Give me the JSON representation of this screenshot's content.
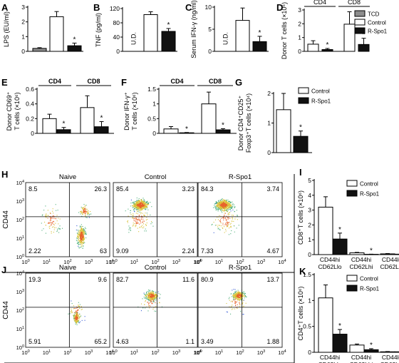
{
  "chart_data": [
    {
      "panel": "A",
      "type": "bar",
      "ylabel": "LPS (EU/ml)",
      "ylim": [
        0,
        3
      ],
      "yticks": [
        0,
        1,
        2,
        3
      ],
      "bars": [
        {
          "series": "TCD",
          "value": 0.2,
          "err": 0.05,
          "star": false
        },
        {
          "series": "Control",
          "value": 2.35,
          "err": 0.35,
          "star": false
        },
        {
          "series": "R-Spo1",
          "value": 0.38,
          "err": 0.18,
          "star": true
        }
      ]
    },
    {
      "panel": "B",
      "type": "bar",
      "ylabel": "TNF (pg/ml)",
      "ylim": [
        0,
        120
      ],
      "yticks": [
        0,
        40,
        80,
        120
      ],
      "ud_label": "U.D.",
      "bars": [
        {
          "series": "TCD",
          "value": null,
          "err": null,
          "star": false
        },
        {
          "series": "Control",
          "value": 103,
          "err": 8,
          "star": false
        },
        {
          "series": "R-Spo1",
          "value": 56,
          "err": 8,
          "star": true
        }
      ]
    },
    {
      "panel": "C",
      "type": "bar",
      "ylabel": "Serum IFN-γ (ng/ml)",
      "ylim": [
        0,
        10
      ],
      "yticks": [
        0,
        5,
        10
      ],
      "ud_label": "U.D.",
      "bars": [
        {
          "series": "TCD",
          "value": null,
          "err": null,
          "star": false
        },
        {
          "series": "Control",
          "value": 7.0,
          "err": 2.8,
          "star": false
        },
        {
          "series": "R-Spo1",
          "value": 2.2,
          "err": 1.2,
          "star": true
        }
      ]
    },
    {
      "panel": "D",
      "type": "bar",
      "ylabel": "Donor T cells (×10⁶)",
      "ylim": [
        0,
        3
      ],
      "yticks": [
        0,
        1,
        2,
        3
      ],
      "groups": [
        "CD4",
        "CD8"
      ],
      "legend": [
        "TCD",
        "Control",
        "R-Spo1"
      ],
      "bars": [
        {
          "group": "CD4",
          "series": "Control",
          "value": 0.52,
          "err": 0.25,
          "star": false
        },
        {
          "group": "CD4",
          "series": "R-Spo1",
          "value": 0.13,
          "err": 0.08,
          "star": true
        },
        {
          "group": "CD8",
          "series": "Control",
          "value": 1.97,
          "err": 0.9,
          "star": false
        },
        {
          "group": "CD8",
          "series": "R-Spo1",
          "value": 0.5,
          "err": 0.45,
          "star": true
        }
      ]
    },
    {
      "panel": "E",
      "type": "bar",
      "ylabel_lines": [
        "Donor CD69⁺",
        "T cells (×10⁶)"
      ],
      "ylim": [
        0,
        0.6
      ],
      "yticks": [
        0,
        0.2,
        0.4,
        0.6
      ],
      "groups": [
        "CD4",
        "CD8"
      ],
      "bars": [
        {
          "group": "CD4",
          "series": "Control",
          "value": 0.2,
          "err": 0.06,
          "star": false
        },
        {
          "group": "CD4",
          "series": "R-Spo1",
          "value": 0.05,
          "err": 0.03,
          "star": true
        },
        {
          "group": "CD8",
          "series": "Control",
          "value": 0.35,
          "err": 0.16,
          "star": false
        },
        {
          "group": "CD8",
          "series": "R-Spo1",
          "value": 0.09,
          "err": 0.07,
          "star": true
        }
      ]
    },
    {
      "panel": "F",
      "type": "bar",
      "ylabel_lines": [
        "Donor IFN-γ⁺",
        "T cells (×10⁶)"
      ],
      "ylim": [
        0,
        1.5
      ],
      "yticks": [
        0,
        0.5,
        1,
        1.5
      ],
      "groups": [
        "CD4",
        "CD8"
      ],
      "bars": [
        {
          "group": "CD4",
          "series": "Control",
          "value": 0.15,
          "err": 0.08,
          "star": false
        },
        {
          "group": "CD4",
          "series": "R-Spo1",
          "value": 0.02,
          "err": 0.01,
          "star": true
        },
        {
          "group": "CD8",
          "series": "Control",
          "value": 1.0,
          "err": 0.4,
          "star": false
        },
        {
          "group": "CD8",
          "series": "R-Spo1",
          "value": 0.12,
          "err": 0.04,
          "star": true
        }
      ]
    },
    {
      "panel": "G",
      "type": "bar",
      "ylabel_lines": [
        "Donor CD4⁺CD25⁺",
        "Foxp3⁺T cells (×10⁴)"
      ],
      "ylim": [
        0,
        2
      ],
      "yticks": [
        0,
        1,
        2
      ],
      "legend": [
        "Control",
        "R-Spo1"
      ],
      "bars": [
        {
          "series": "Control",
          "value": 1.45,
          "err": 0.55,
          "star": false
        },
        {
          "series": "R-Spo1",
          "value": 0.55,
          "err": 0.18,
          "star": true
        }
      ]
    },
    {
      "panel": "H",
      "type": "scatter",
      "xlabel": "CD62L",
      "ylabel": "CD44",
      "plots": [
        {
          "title": "Naive",
          "quadrants": {
            "ul": "8.5",
            "ur": "26.3",
            "ll": "2.22",
            "lr": "63"
          }
        },
        {
          "title": "Control",
          "quadrants": {
            "ul": "85.4",
            "ur": "3.23",
            "ll": "9.09",
            "lr": "2.24"
          }
        },
        {
          "title": "R-Spo1",
          "quadrants": {
            "ul": "84.3",
            "ur": "3.74",
            "ll": "7.33",
            "lr": "4.67"
          }
        }
      ]
    },
    {
      "panel": "I",
      "type": "bar",
      "ylabel": "CD8⁺T cells (×10⁶)",
      "ylim": [
        0,
        5
      ],
      "yticks": [
        0,
        1,
        2,
        3,
        4,
        5
      ],
      "groups": [
        "CD44hi CD62Llo",
        "CD44hi CD62Lhi",
        "CD44lo CD62Lhi"
      ],
      "legend": [
        "Control",
        "R-Spo1"
      ],
      "bars": [
        {
          "group": "CD44hi CD62Llo",
          "series": "Control",
          "value": 3.2,
          "err": 0.7,
          "star": false
        },
        {
          "group": "CD44hi CD62Llo",
          "series": "R-Spo1",
          "value": 1.05,
          "err": 0.4,
          "star": true
        },
        {
          "group": "CD44hi CD62Lhi",
          "series": "Control",
          "value": 0.12,
          "err": 0.03,
          "star": false
        },
        {
          "group": "CD44hi CD62Lhi",
          "series": "R-Spo1",
          "value": 0.02,
          "err": 0.01,
          "star": true
        },
        {
          "group": "CD44lo CD62Lhi",
          "series": "Control",
          "value": 0.05,
          "err": 0.02,
          "star": false
        },
        {
          "group": "CD44lo CD62Lhi",
          "series": "R-Spo1",
          "value": 0.03,
          "err": 0.01,
          "star": false
        }
      ]
    },
    {
      "panel": "J",
      "type": "scatter",
      "xlabel": "CD62L",
      "ylabel": "CD44",
      "plots": [
        {
          "title": "Naive",
          "quadrants": {
            "ul": "19.3",
            "ur": "9.6",
            "ll": "5.91",
            "lr": "65.2"
          }
        },
        {
          "title": "Control",
          "quadrants": {
            "ul": "82.7",
            "ur": "11.6",
            "ll": "4.63",
            "lr": "1.1"
          }
        },
        {
          "title": "R-Spo1",
          "quadrants": {
            "ul": "80.9",
            "ur": "13.7",
            "ll": "3.49",
            "lr": "1.88"
          }
        }
      ]
    },
    {
      "panel": "K",
      "type": "bar",
      "ylabel": "CD4⁺T cells (×10⁶)",
      "ylim": [
        0,
        1.5
      ],
      "yticks": [
        0,
        0.5,
        1,
        1.5
      ],
      "groups": [
        "CD44hi CD62Llo",
        "CD44hi CD62Lhi",
        "CD44lo CD62Lhi"
      ],
      "legend": [
        "Control",
        "R-Spo1"
      ],
      "bars": [
        {
          "group": "CD44hi CD62Llo",
          "series": "Control",
          "value": 1.05,
          "err": 0.25,
          "star": false
        },
        {
          "group": "CD44hi CD62Llo",
          "series": "R-Spo1",
          "value": 0.35,
          "err": 0.09,
          "star": true
        },
        {
          "group": "CD44hi CD62Lhi",
          "series": "Control",
          "value": 0.14,
          "err": 0.02,
          "star": false
        },
        {
          "group": "CD44hi CD62Lhi",
          "series": "R-Spo1",
          "value": 0.05,
          "err": 0.02,
          "star": true
        },
        {
          "group": "CD44lo CD62Lhi",
          "series": "Control",
          "value": 0.01,
          "err": 0.005,
          "star": false
        },
        {
          "group": "CD44lo CD62Lhi",
          "series": "R-Spo1",
          "value": 0.01,
          "err": 0.005,
          "star": false
        }
      ]
    }
  ],
  "scatter_axis": {
    "tick_exponents": [
      "0",
      "1",
      "2",
      "3",
      "4"
    ]
  },
  "colors": {
    "TCD": "#8c8c8c",
    "Control": "#ffffff",
    "R-Spo1": "#111111"
  }
}
